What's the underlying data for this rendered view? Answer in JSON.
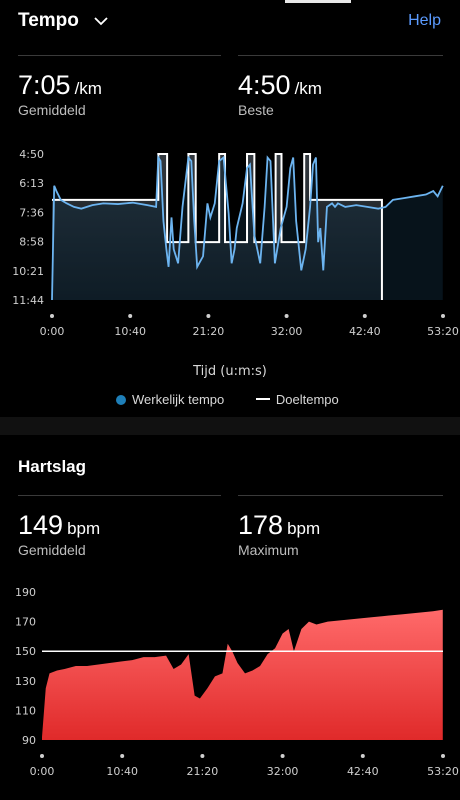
{
  "header": {
    "title": "Tempo",
    "help_label": "Help",
    "icons": {
      "dropdown": "chevron-down-icon"
    }
  },
  "pace": {
    "avg_value": "7:05",
    "avg_unit": "/km",
    "avg_label": "Gemiddeld",
    "best_value": "4:50",
    "best_unit": "/km",
    "best_label": "Beste"
  },
  "heart": {
    "section_title": "Hartslag",
    "avg_value": "149",
    "avg_unit": "bpm",
    "avg_label": "Gemiddeld",
    "max_value": "178",
    "max_unit": "bpm",
    "max_label": "Maximum"
  },
  "legend": {
    "actual": "Werkelijk tempo",
    "target": "Doeltempo"
  },
  "colors": {
    "accent": "#5b9bff",
    "pace_line": "#6cb4f0",
    "legend_dot": "#1e7fb8",
    "hr_fill_top": "#ff6a6a",
    "hr_fill_bottom": "#e02a2a"
  },
  "chart_data": [
    {
      "type": "line",
      "xlabel": "Tijd (u:m:s)",
      "x_ticks": [
        "0:00",
        "10:40",
        "21:20",
        "32:00",
        "42:40",
        "53:20"
      ],
      "y_ticks": [
        "4:50",
        "6:13",
        "7:36",
        "8:58",
        "10:21",
        "11:44"
      ],
      "xlim": [
        0,
        53.33
      ],
      "ylim_sec_per_km": [
        290,
        704
      ],
      "series": [
        {
          "name": "Werkelijk tempo",
          "x": [
            0.0,
            0.3,
            0.6,
            1.2,
            2.0,
            3.0,
            4.0,
            5.5,
            7.0,
            9.0,
            11.0,
            13.0,
            14.2,
            14.5,
            14.8,
            15.2,
            15.6,
            15.9,
            16.3,
            16.6,
            17.2,
            17.8,
            18.6,
            19.0,
            19.4,
            19.8,
            20.6,
            21.2,
            21.6,
            22.2,
            22.8,
            23.4,
            24.1,
            24.5,
            24.9,
            25.2,
            26.0,
            26.6,
            27.0,
            27.6,
            28.4,
            29.0,
            29.4,
            29.8,
            30.4,
            31.2,
            32.0,
            32.5,
            32.9,
            33.3,
            34.0,
            34.6,
            35.2,
            35.6,
            36.0,
            36.3,
            36.6,
            37.0,
            37.5,
            38.2,
            38.6,
            39.0,
            40.0,
            41.5,
            43.0,
            44.5,
            45.5,
            46.5,
            48.0,
            49.5,
            51.0,
            52.0,
            52.6,
            53.3
          ],
          "y": [
            704,
            380,
            395,
            420,
            430,
            440,
            445,
            435,
            430,
            432,
            428,
            435,
            440,
            300,
            310,
            480,
            560,
            610,
            470,
            560,
            600,
            440,
            300,
            310,
            480,
            610,
            580,
            430,
            470,
            430,
            310,
            300,
            460,
            600,
            560,
            500,
            430,
            330,
            320,
            520,
            600,
            440,
            300,
            310,
            600,
            500,
            440,
            330,
            300,
            480,
            620,
            560,
            440,
            320,
            300,
            540,
            500,
            620,
            440,
            430,
            440,
            430,
            440,
            435,
            440,
            445,
            440,
            420,
            415,
            410,
            405,
            395,
            410,
            380
          ]
        },
        {
          "name": "Doeltempo",
          "x": [
            0.0,
            14.5,
            14.5,
            15.7,
            15.7,
            18.6,
            18.6,
            19.6,
            19.6,
            22.8,
            22.8,
            23.6,
            23.6,
            26.6,
            26.6,
            27.6,
            27.6,
            30.5,
            30.5,
            31.3,
            31.3,
            34.4,
            34.4,
            35.2,
            35.2,
            45.0,
            45.0
          ],
          "y": [
            420,
            420,
            290,
            290,
            540,
            540,
            290,
            290,
            540,
            540,
            290,
            290,
            540,
            540,
            290,
            290,
            540,
            540,
            290,
            290,
            540,
            540,
            290,
            290,
            420,
            420,
            704
          ]
        }
      ]
    },
    {
      "type": "area",
      "x_ticks": [
        "0:00",
        "10:40",
        "21:20",
        "32:00",
        "42:40",
        "53:20"
      ],
      "y_ticks": [
        "190",
        "170",
        "150",
        "130",
        "110",
        "90"
      ],
      "xlim": [
        0,
        53.33
      ],
      "ylim": [
        90,
        190
      ],
      "reference_line": 150,
      "series": [
        {
          "name": "Hartslag",
          "x": [
            0.0,
            0.5,
            1.0,
            2.0,
            3.0,
            4.5,
            6.0,
            7.5,
            9.0,
            10.5,
            12.0,
            13.5,
            15.0,
            16.5,
            17.5,
            18.5,
            19.5,
            20.3,
            21.0,
            22.0,
            23.0,
            24.0,
            24.7,
            25.3,
            26.0,
            27.0,
            28.0,
            29.0,
            30.0,
            31.0,
            32.0,
            32.8,
            33.5,
            34.5,
            35.5,
            36.5,
            38.0,
            40.0,
            42.0,
            44.0,
            46.0,
            48.0,
            50.0,
            52.0,
            53.3
          ],
          "y": [
            92,
            125,
            135,
            137,
            138,
            140,
            140,
            141,
            142,
            143,
            144,
            146,
            146,
            147,
            138,
            141,
            148,
            120,
            118,
            125,
            133,
            135,
            155,
            150,
            142,
            135,
            137,
            140,
            148,
            152,
            162,
            165,
            150,
            165,
            170,
            168,
            170,
            171,
            172,
            173,
            174,
            175,
            176,
            177,
            178
          ]
        }
      ]
    }
  ]
}
